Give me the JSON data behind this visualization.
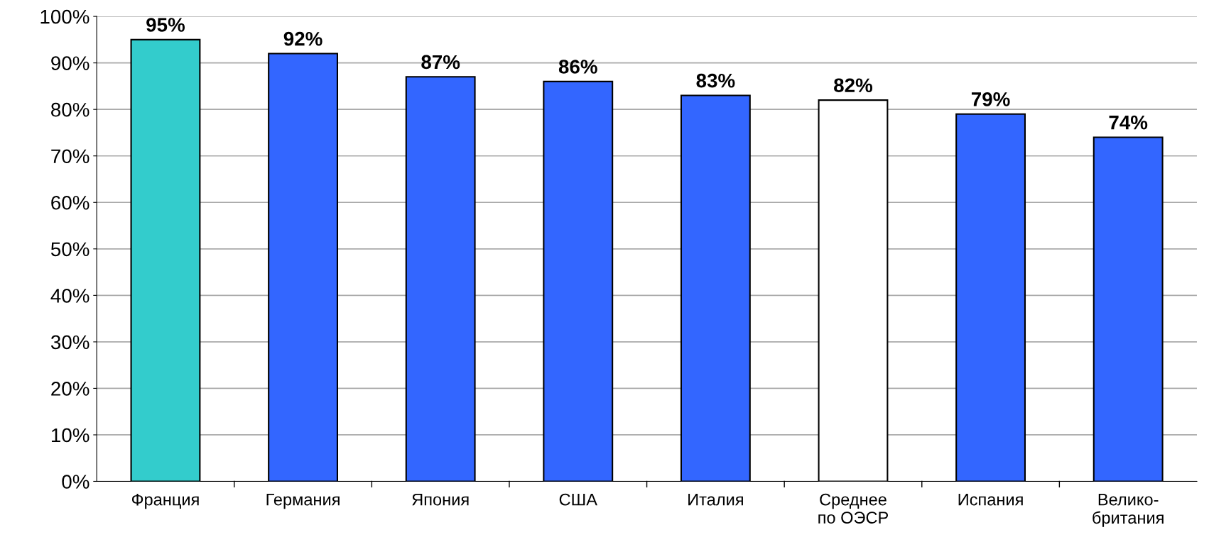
{
  "chart_data": {
    "type": "bar",
    "categories": [
      "Франция",
      "Германия",
      "Япония",
      "США",
      "Италия",
      "Среднее\nпо ОЭСР",
      "Испания",
      "Велико-\nбритания"
    ],
    "values": [
      95,
      92,
      87,
      86,
      83,
      82,
      79,
      74
    ],
    "colors": [
      "#33cccc",
      "#3366ff",
      "#3366ff",
      "#3366ff",
      "#3366ff",
      "#ffffff",
      "#3366ff",
      "#3366ff"
    ],
    "value_labels": [
      "95%",
      "92%",
      "87%",
      "86%",
      "83%",
      "82%",
      "79%",
      "74%"
    ],
    "ylim": [
      0,
      100
    ],
    "yticks": [
      {
        "value": 0,
        "label": "0%"
      },
      {
        "value": 10,
        "label": "10%"
      },
      {
        "value": 20,
        "label": "20%"
      },
      {
        "value": 30,
        "label": "30%"
      },
      {
        "value": 40,
        "label": "40%"
      },
      {
        "value": 50,
        "label": "50%"
      },
      {
        "value": 60,
        "label": "60%"
      },
      {
        "value": 70,
        "label": "70%"
      },
      {
        "value": 80,
        "label": "80%"
      },
      {
        "value": 90,
        "label": "90%"
      },
      {
        "value": 100,
        "label": "100%"
      }
    ],
    "grid": "y"
  }
}
